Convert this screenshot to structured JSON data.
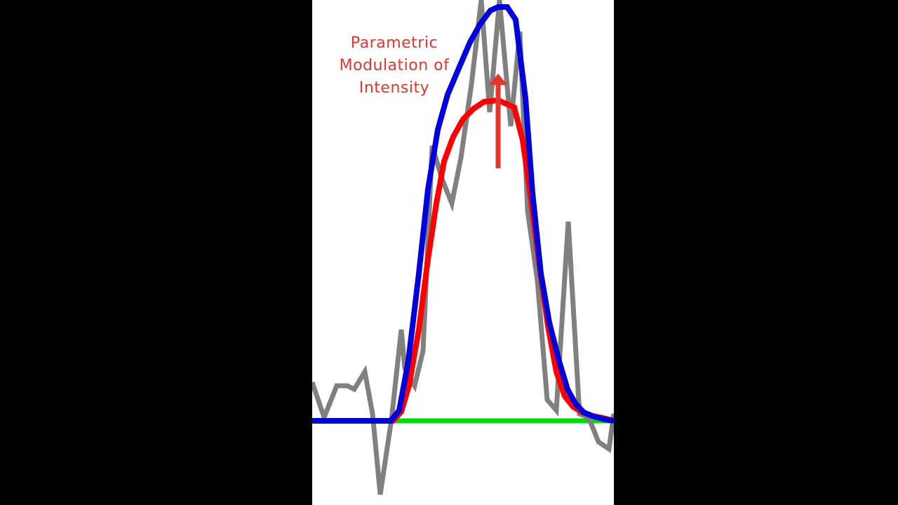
{
  "chart_data": {
    "type": "line",
    "title": "",
    "xlabel": "",
    "ylabel": "",
    "xlim": [
      0,
      43
    ],
    "ylim": [
      -1.2,
      6.0
    ],
    "grid": false,
    "legend": "none",
    "annotation": {
      "lines": [
        "Parametric",
        "Modulation of",
        "Intensity"
      ],
      "color": "#e8342a",
      "arrow": {
        "x": 26.5,
        "from": 3.6,
        "to": 4.95,
        "color": "#e8342a"
      }
    },
    "series": [
      {
        "role": "baseline",
        "color": "#00dd00",
        "x": [
          11,
          43
        ],
        "y": [
          0,
          0
        ]
      },
      {
        "role": "noisy signal",
        "color": "#808080",
        "x": [
          0,
          1.7,
          3.5,
          5,
          6,
          7.5,
          8.6,
          9.7,
          11.3,
          12.7,
          13.2,
          14.6,
          15.8,
          17.1,
          18.5,
          19.9,
          21.2,
          22.7,
          24.1,
          25.3,
          26.7,
          28.3,
          29.6,
          30.7,
          32.1,
          33.5,
          34.8,
          36.5,
          38.1,
          39.4,
          40.8,
          42.3,
          43
        ],
        "y": [
          0.55,
          0.05,
          0.5,
          0.5,
          0.45,
          0.7,
          0.1,
          -1.05,
          0.02,
          1.3,
          0.75,
          0.5,
          1.0,
          3.92,
          3.45,
          3.1,
          3.75,
          4.8,
          6.0,
          4.4,
          6.0,
          4.2,
          5.55,
          3.0,
          2.0,
          0.3,
          0.15,
          2.84,
          0.1,
          0.05,
          -0.3,
          -0.4,
          0.1
        ]
      },
      {
        "role": "modeled response (low)",
        "color": "#ff0000",
        "x": [
          0,
          9.5,
          11.5,
          12.7,
          13.8,
          15.2,
          16.5,
          17.7,
          18.8,
          20.1,
          21.5,
          23.0,
          24.5,
          26.5,
          28.8,
          30.0,
          31.2,
          32.4,
          33.6,
          34.8,
          36.0,
          37.2,
          38.5,
          40.0,
          41.5,
          43
        ],
        "y": [
          0,
          0,
          0,
          0.13,
          0.5,
          1.3,
          2.3,
          3.1,
          3.7,
          4.05,
          4.3,
          4.45,
          4.55,
          4.57,
          4.47,
          4.0,
          3.15,
          2.2,
          1.35,
          0.7,
          0.35,
          0.2,
          0.12,
          0.07,
          0.04,
          0
        ]
      },
      {
        "role": "modeled response (high)",
        "color": "#0000dd",
        "x": [
          0,
          9.5,
          11.2,
          12.4,
          13.7,
          15.2,
          16.5,
          17.9,
          19.3,
          21.0,
          22.5,
          23.9,
          25.4,
          26.5,
          27.8,
          29.0,
          30.4,
          31.4,
          32.6,
          33.8,
          35.2,
          36.4,
          37.5,
          38.7,
          40.2,
          41.7,
          43
        ],
        "y": [
          0,
          0,
          0,
          0.15,
          0.85,
          2.1,
          3.3,
          4.15,
          4.65,
          5.05,
          5.4,
          5.65,
          5.85,
          5.9,
          5.9,
          5.72,
          4.6,
          3.25,
          2.1,
          1.4,
          0.85,
          0.45,
          0.25,
          0.12,
          0.06,
          0.02,
          0
        ]
      }
    ]
  }
}
